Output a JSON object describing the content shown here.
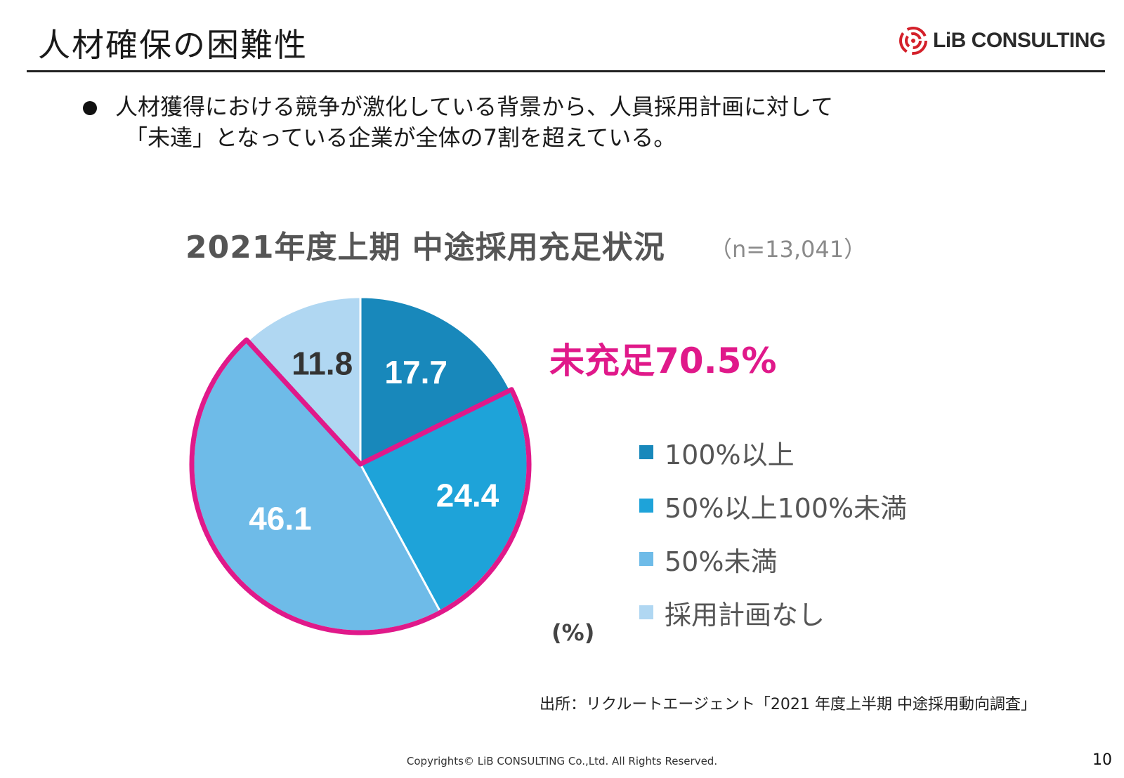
{
  "slide": {
    "title": "人材確保の困難性",
    "logo_text": "LiB CONSULTING",
    "bullet_lines": [
      "人材獲得における競争が激化している背景から、人員採用計画に対して",
      "「未達」となっている企業が全体の7割を超えている。"
    ],
    "source": "出所：リクルートエージェント「2021 年度上半期 中途採用動向調査」",
    "copyright": "Copyrights© LiB CONSULTING Co.,Ltd.  All Rights Reserved.",
    "page_number": "10"
  },
  "chart_data": {
    "type": "pie",
    "title": "2021年度上期 中途採用充足状況",
    "subtitle": "（n=13,041）",
    "unit": "(%)",
    "highlight_label": "未充足70.5%",
    "highlight_color": "#e0198a",
    "start_angle_deg": 0,
    "direction": "clockwise",
    "legend_position": "right",
    "slices": [
      {
        "label": "100%以上",
        "value": 17.7,
        "color": "#1888bb",
        "highlighted": false
      },
      {
        "label": "50%以上100%未満",
        "value": 24.4,
        "color": "#1ea3d9",
        "highlighted": true
      },
      {
        "label": "50%未満",
        "value": 46.1,
        "color": "#6ebbe8",
        "highlighted": true
      },
      {
        "label": "採用計画なし",
        "value": 11.8,
        "color": "#b0d7f2",
        "highlighted": false
      }
    ],
    "value_label_colors": [
      "#ffffff",
      "#ffffff",
      "#ffffff",
      "#333333"
    ]
  }
}
